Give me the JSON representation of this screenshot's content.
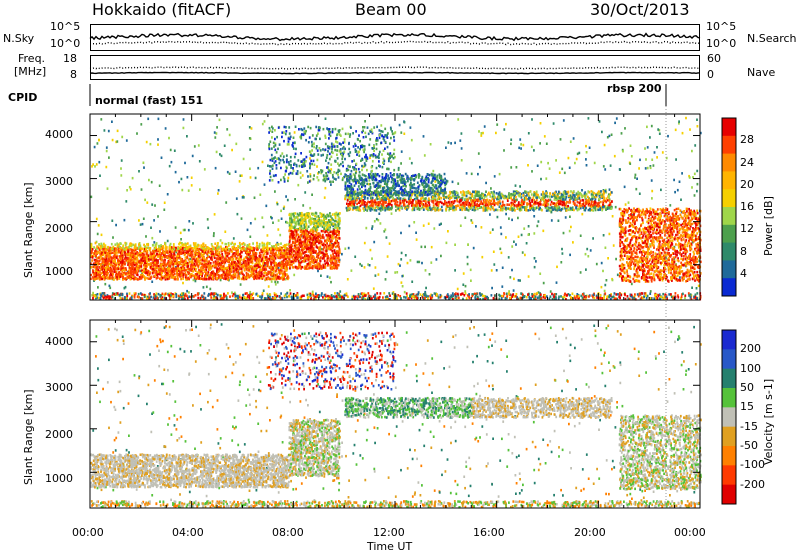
{
  "header": {
    "station": "Hokkaido (fitACF)",
    "beam": "Beam 00",
    "date": "30/Oct/2013"
  },
  "strips": {
    "nsky_label": "N.Sky",
    "nsearch_label": "N.Search",
    "noise_ticks": [
      "10^5",
      "10^0"
    ],
    "freq_label_line1": "Freq.",
    "freq_label_line2": "[MHz]",
    "freq_ticks": [
      "18",
      "8"
    ],
    "nave_label": "Nave",
    "nave_ticks": [
      "60",
      "0"
    ],
    "cpid_label": "CPID",
    "cpid_mode1": "normal (fast) 151",
    "cpid_mode2": "rbsp 200"
  },
  "panels": {
    "ylabel": "Slant Range [km]",
    "y_ticks": [
      "4000",
      "3000",
      "2000",
      "1000"
    ],
    "xlabel": "Time UT",
    "x_ticks": [
      "00:00",
      "04:00",
      "08:00",
      "12:00",
      "16:00",
      "20:00",
      "00:00"
    ]
  },
  "power_scale": {
    "label": "Power [dB]",
    "ticks": [
      "28",
      "24",
      "20",
      "16",
      "12",
      "8",
      "4"
    ],
    "colors": [
      "#e60000",
      "#ff4000",
      "#ff8a00",
      "#ffb400",
      "#f5d000",
      "#9fd64a",
      "#4da04d",
      "#2f8a6a",
      "#1f6a9a",
      "#0a2ad2"
    ]
  },
  "velocity_scale": {
    "label": "Velocity [m s-1]",
    "ticks": [
      "200",
      "100",
      "50",
      "15",
      "-15",
      "-50",
      "-100",
      "-200"
    ],
    "colors": [
      "#1a2ad0",
      "#2858c8",
      "#25806e",
      "#55c23a",
      "#c0c0b6",
      "#e0a020",
      "#ff8000",
      "#ff3a00",
      "#e00000"
    ]
  },
  "chart_data": {
    "type": "heatmap",
    "x_range_hours": [
      0,
      24
    ],
    "y_range_km": [
      180,
      4500
    ],
    "power_regions": [
      {
        "t0": 0.0,
        "t1": 7.8,
        "r0": 700,
        "r1": 1350,
        "level": "high"
      },
      {
        "t0": 7.8,
        "t1": 9.8,
        "r0": 1000,
        "r1": 2100,
        "level": "high"
      },
      {
        "t0": 11.0,
        "t1": 20.5,
        "r0": 2300,
        "r1": 2600,
        "level": "high"
      },
      {
        "t0": 20.8,
        "t1": 24.0,
        "r0": 600,
        "r1": 2200,
        "level": "high"
      }
    ]
  }
}
